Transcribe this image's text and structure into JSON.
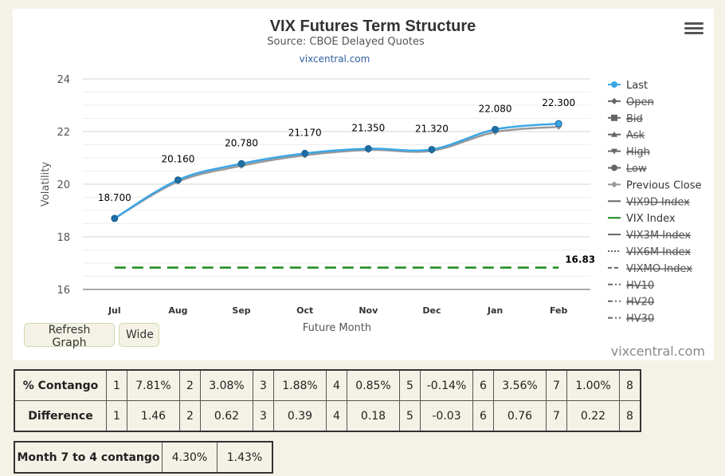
{
  "chart_data": {
    "type": "line",
    "title": "VIX Futures Term Structure",
    "subtitle": "Source: CBOE Delayed Quotes",
    "link": "vixcentral.com",
    "xlabel": "Future Month",
    "ylabel": "Volatility",
    "categories": [
      "Jul",
      "Aug",
      "Sep",
      "Oct",
      "Nov",
      "Dec",
      "Jan",
      "Feb"
    ],
    "ylim": [
      16,
      24
    ],
    "yticks": [
      16,
      18,
      20,
      22,
      24
    ],
    "grid": true,
    "legend_position": "right",
    "series": [
      {
        "name": "Last",
        "values": [
          18.7,
          20.16,
          20.78,
          21.17,
          21.35,
          21.32,
          22.08,
          22.3
        ],
        "labels": [
          "18.700",
          "20.160",
          "20.780",
          "21.170",
          "21.350",
          "21.320",
          "22.080",
          "22.300"
        ],
        "color": "#3aa6e6"
      },
      {
        "name": "Previous Close",
        "values": [
          18.7,
          20.1,
          20.7,
          21.1,
          21.3,
          21.27,
          21.98,
          22.18
        ],
        "color": "#999999"
      },
      {
        "name": "VIX Index",
        "values": [
          16.83,
          16.83,
          16.83,
          16.83,
          16.83,
          16.83,
          16.83,
          16.83
        ],
        "end_label": "16.83",
        "color": "#1a8a1a"
      }
    ],
    "legend": [
      {
        "name": "Last",
        "icon": "circle-line",
        "active": true,
        "color": "#3aa6e6"
      },
      {
        "name": "Open",
        "icon": "diamond-line",
        "active": false,
        "color": "#666666"
      },
      {
        "name": "Bid",
        "icon": "square-line",
        "active": false,
        "color": "#666666"
      },
      {
        "name": "Ask",
        "icon": "triangle-line",
        "active": false,
        "color": "#666666"
      },
      {
        "name": "High",
        "icon": "triangle-down-line",
        "active": false,
        "color": "#666666"
      },
      {
        "name": "Low",
        "icon": "circle-line",
        "active": false,
        "color": "#666666"
      },
      {
        "name": "Previous Close",
        "icon": "diamond-line",
        "active": true,
        "color": "#999999"
      },
      {
        "name": "VIX9D Index",
        "icon": "solid-line",
        "active": false,
        "color": "#666666"
      },
      {
        "name": "VIX Index",
        "icon": "solid-line",
        "active": true,
        "color": "#1a8a1a"
      },
      {
        "name": "VIX3M Index",
        "icon": "solid-line",
        "active": false,
        "color": "#666666"
      },
      {
        "name": "VIX6M Index",
        "icon": "dotted-line",
        "active": false,
        "color": "#666666"
      },
      {
        "name": "VIXMO Index",
        "icon": "dashed-line",
        "active": false,
        "color": "#666666"
      },
      {
        "name": "HV10",
        "icon": "dashdot-line",
        "active": false,
        "color": "#666666"
      },
      {
        "name": "HV20",
        "icon": "dashdot-line",
        "active": false,
        "color": "#666666"
      },
      {
        "name": "HV30",
        "icon": "dashdot-line",
        "active": false,
        "color": "#666666"
      }
    ]
  },
  "ui": {
    "menu_icon": "hamburger-menu-icon",
    "refresh_label": "Refresh Graph",
    "wide_label": "Wide",
    "credit": "vixcentral.com"
  },
  "contango_table": {
    "rows": [
      {
        "label": "% Contango",
        "cells": [
          "1",
          "7.81%",
          "2",
          "3.08%",
          "3",
          "1.88%",
          "4",
          "0.85%",
          "5",
          "-0.14%",
          "6",
          "3.56%",
          "7",
          "1.00%",
          "8"
        ]
      },
      {
        "label": "Difference",
        "cells": [
          "1",
          "1.46",
          "2",
          "0.62",
          "3",
          "0.39",
          "4",
          "0.18",
          "5",
          "-0.03",
          "6",
          "0.76",
          "7",
          "0.22",
          "8"
        ]
      }
    ]
  },
  "month_table": {
    "label": "Month 7 to 4 contango",
    "value1": "4.30%",
    "value2": "1.43%"
  }
}
